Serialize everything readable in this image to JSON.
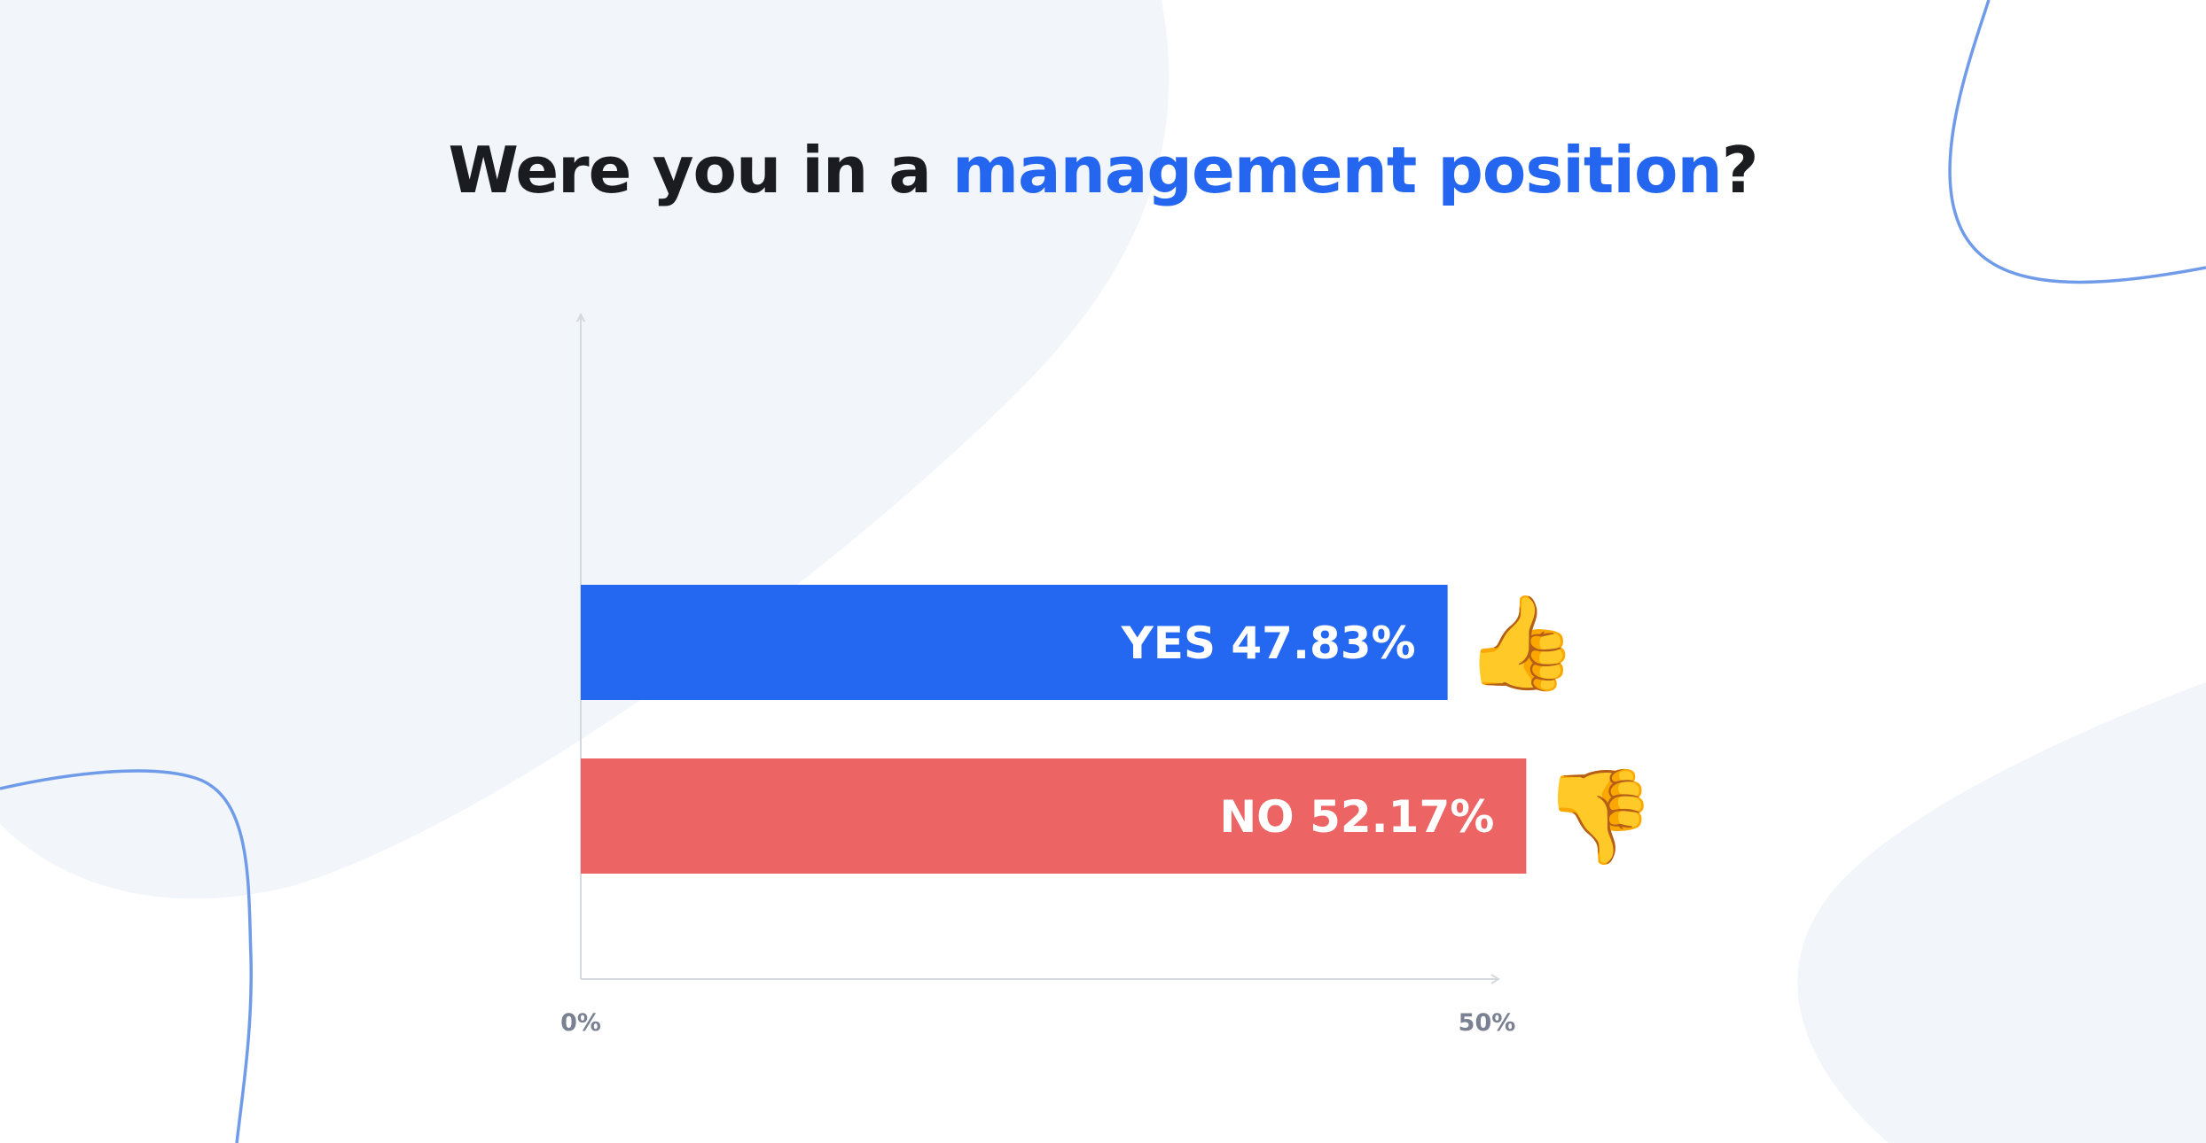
{
  "title": {
    "prefix": "Were you in a ",
    "highlight": "management position",
    "suffix": "?"
  },
  "colors": {
    "title_text": "#1b1c20",
    "title_accent": "#2466ef",
    "blob": "#f2f6fb",
    "curve": "#6f9be9",
    "axis": "#d4d8df",
    "tick_text": "#7a8192"
  },
  "chart_data": {
    "type": "bar",
    "orientation": "horizontal",
    "categories": [
      "YES",
      "NO"
    ],
    "values": [
      47.83,
      52.17
    ],
    "value_labels": [
      "47.83%",
      "52.17%"
    ],
    "colors": [
      "#2467f0",
      "#ec6564"
    ],
    "icons": [
      "thumbs-up-icon",
      "thumbs-down-icon"
    ],
    "icon_glyphs": [
      "👍",
      "👎"
    ],
    "xlim": [
      0,
      50
    ],
    "x_ticks": [
      0,
      50
    ],
    "x_tick_labels": [
      "0%",
      "50%"
    ],
    "grid": false
  }
}
